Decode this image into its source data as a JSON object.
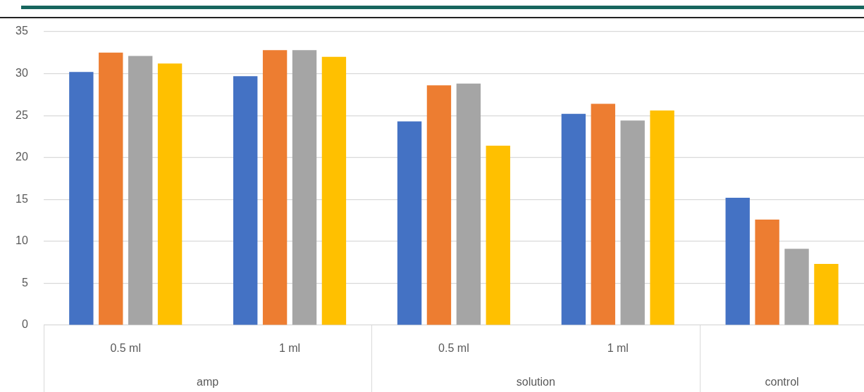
{
  "chart_data": {
    "type": "bar",
    "categories": [
      "0.5 ml",
      "1 ml",
      "0.5 ml",
      "1 ml",
      null
    ],
    "series": [
      {
        "color": "#4472c4",
        "values": [
          30.2,
          29.7,
          24.3,
          25.2,
          15.2
        ]
      },
      {
        "color": "#ed7d31",
        "values": [
          32.5,
          32.8,
          28.6,
          26.4,
          12.6
        ]
      },
      {
        "color": "#a5a5a5",
        "values": [
          32.1,
          32.8,
          28.8,
          24.4,
          9.1
        ]
      },
      {
        "color": "#ffc000",
        "values": [
          31.2,
          32.0,
          21.4,
          25.6,
          7.3
        ]
      }
    ],
    "annotations": [
      "amp",
      "solution",
      "control"
    ],
    "ylim": [
      0,
      35
    ],
    "yticks": [
      0,
      5,
      10,
      15,
      20,
      25,
      30,
      35
    ],
    "grid": "y",
    "legend": false
  }
}
